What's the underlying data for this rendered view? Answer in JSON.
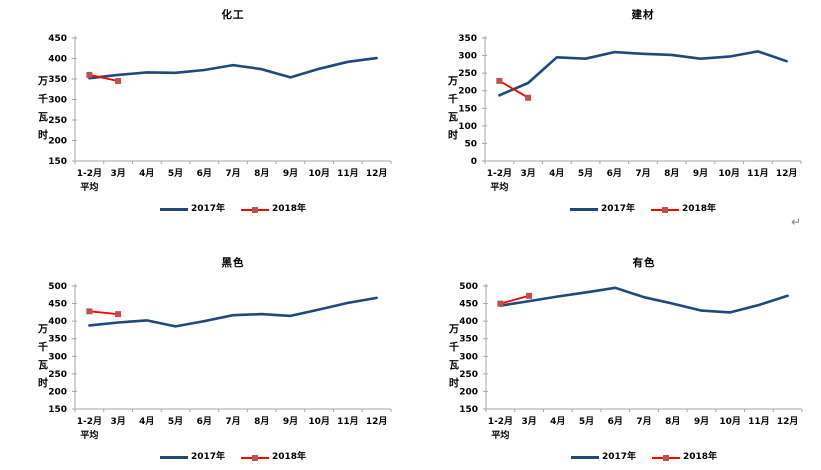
{
  "page": {
    "background": "#ffffff",
    "return_mark_glyph": "↵"
  },
  "colors": {
    "series_2017_line": "#1F497D",
    "series_2018_line": "#FF0000",
    "series_2018_marker": "#C0504D",
    "axis": "#A6A6A6",
    "tick_text": "#000000",
    "title_text": "#000000"
  },
  "legend": {
    "label_2017": "2017年",
    "label_2018": "2018年"
  },
  "chart_data": [
    {
      "type": "line",
      "title": "化工",
      "ylabel": "万千瓦时",
      "ylim": [
        150,
        450
      ],
      "yticks": [
        450,
        400,
        350,
        300,
        250,
        200,
        150
      ],
      "grid": false,
      "legend_position": "bottom",
      "categories": [
        "1-2月\n平均",
        "3月",
        "4月",
        "5月",
        "6月",
        "7月",
        "8月",
        "9月",
        "10月",
        "11月",
        "12月"
      ],
      "series": [
        {
          "name": "2017年",
          "values": [
            352,
            360,
            366,
            365,
            372,
            384,
            374,
            354,
            375,
            392,
            401
          ]
        },
        {
          "name": "2018年",
          "values": [
            360,
            345
          ]
        }
      ]
    },
    {
      "type": "line",
      "title": "建材",
      "ylabel": "万千瓦时",
      "ylim": [
        0,
        350
      ],
      "yticks": [
        350,
        300,
        250,
        200,
        150,
        100,
        50,
        0
      ],
      "grid": false,
      "legend_position": "bottom",
      "categories": [
        "1-2月\n平均",
        "3月",
        "4月",
        "5月",
        "6月",
        "7月",
        "8月",
        "9月",
        "10月",
        "11月",
        "12月"
      ],
      "series": [
        {
          "name": "2017年",
          "values": [
            187,
            222,
            295,
            291,
            310,
            305,
            302,
            291,
            297,
            312,
            284
          ]
        },
        {
          "name": "2018年",
          "values": [
            228,
            180
          ]
        }
      ]
    },
    {
      "type": "line",
      "title": "黑色",
      "ylabel": "万千瓦时",
      "ylim": [
        150,
        500
      ],
      "yticks": [
        500,
        450,
        400,
        350,
        300,
        250,
        200,
        150
      ],
      "grid": false,
      "legend_position": "bottom",
      "categories": [
        "1-2月\n平均",
        "3月",
        "4月",
        "5月",
        "6月",
        "7月",
        "8月",
        "9月",
        "10月",
        "11月",
        "12月"
      ],
      "series": [
        {
          "name": "2017年",
          "values": [
            388,
            396,
            402,
            385,
            400,
            417,
            420,
            415,
            433,
            452,
            466
          ]
        },
        {
          "name": "2018年",
          "values": [
            428,
            420
          ]
        }
      ]
    },
    {
      "type": "line",
      "title": "有色",
      "ylabel": "万千瓦时",
      "ylim": [
        150,
        500
      ],
      "yticks": [
        500,
        450,
        400,
        350,
        300,
        250,
        200,
        150
      ],
      "grid": false,
      "legend_position": "bottom",
      "categories": [
        "1-2月\n平均",
        "3月",
        "4月",
        "5月",
        "6月",
        "7月",
        "8月",
        "9月",
        "10月",
        "11月",
        "12月"
      ],
      "series": [
        {
          "name": "2017年",
          "values": [
            444,
            457,
            470,
            482,
            495,
            468,
            450,
            430,
            425,
            446,
            472
          ]
        },
        {
          "name": "2018年",
          "values": [
            450,
            472
          ]
        }
      ]
    }
  ]
}
